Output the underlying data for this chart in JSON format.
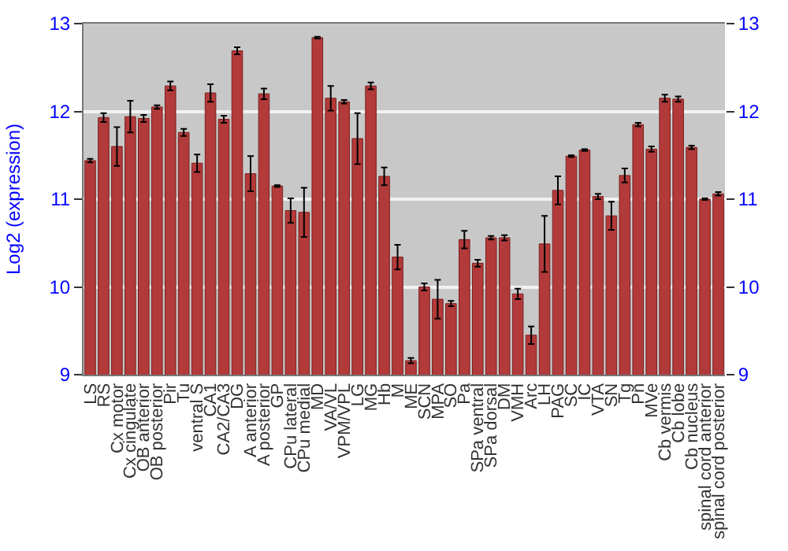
{
  "chart_data": {
    "type": "bar",
    "ylabel": "Log2 (expression)",
    "categories": [
      "LS",
      "RS",
      "Cx motor",
      "Cx cingulate",
      "OB anterior",
      "OB posterior",
      "Pir",
      "Tu",
      "ventral S",
      "CA1",
      "CA2/CA3",
      "DG",
      "A anterior",
      "A posterior",
      "GP",
      "CPu lateral",
      "CPu medial",
      "MD",
      "VA/VL",
      "VPM/VPL",
      "LG",
      "MG",
      "Hb",
      "M",
      "ME",
      "SCN",
      "MPA",
      "SO",
      "Pa",
      "SPa ventral",
      "SPa dorsal",
      "DM",
      "VMH",
      "Arc",
      "LH",
      "PAG",
      "SC",
      "IC",
      "VTA",
      "SN",
      "Tg",
      "Pn",
      "MVe",
      "Cb vermis",
      "Cb lobe",
      "Cb nucleus",
      "spinal cord anterior",
      "spinal cord posterior"
    ],
    "values": [
      11.44,
      11.93,
      11.6,
      11.94,
      11.92,
      12.05,
      12.29,
      11.76,
      11.41,
      12.21,
      11.91,
      12.69,
      11.29,
      12.2,
      11.15,
      10.87,
      10.85,
      12.84,
      12.15,
      12.11,
      11.69,
      12.29,
      11.26,
      10.34,
      9.16,
      10.0,
      9.86,
      9.81,
      10.54,
      10.27,
      10.56,
      10.56,
      9.92,
      9.45,
      10.49,
      11.1,
      11.49,
      11.56,
      11.03,
      10.81,
      11.27,
      11.85,
      11.57,
      12.15,
      12.14,
      11.59,
      11.0,
      11.06
    ],
    "errors": [
      0.02,
      0.05,
      0.22,
      0.18,
      0.04,
      0.02,
      0.05,
      0.04,
      0.1,
      0.1,
      0.04,
      0.04,
      0.2,
      0.06,
      0.01,
      0.14,
      0.28,
      0.01,
      0.14,
      0.02,
      0.29,
      0.04,
      0.1,
      0.14,
      0.03,
      0.04,
      0.22,
      0.03,
      0.1,
      0.04,
      0.02,
      0.03,
      0.06,
      0.1,
      0.32,
      0.16,
      0.01,
      0.01,
      0.03,
      0.16,
      0.08,
      0.02,
      0.03,
      0.04,
      0.03,
      0.02,
      0.01,
      0.02
    ],
    "color": "#b33a3a",
    "ylim": [
      9,
      13
    ],
    "yticks": [
      9,
      10,
      11,
      12,
      13
    ],
    "y2lim": [
      9,
      13
    ],
    "y2ticks": [
      9,
      10,
      11,
      12,
      13
    ],
    "grid": "y"
  }
}
